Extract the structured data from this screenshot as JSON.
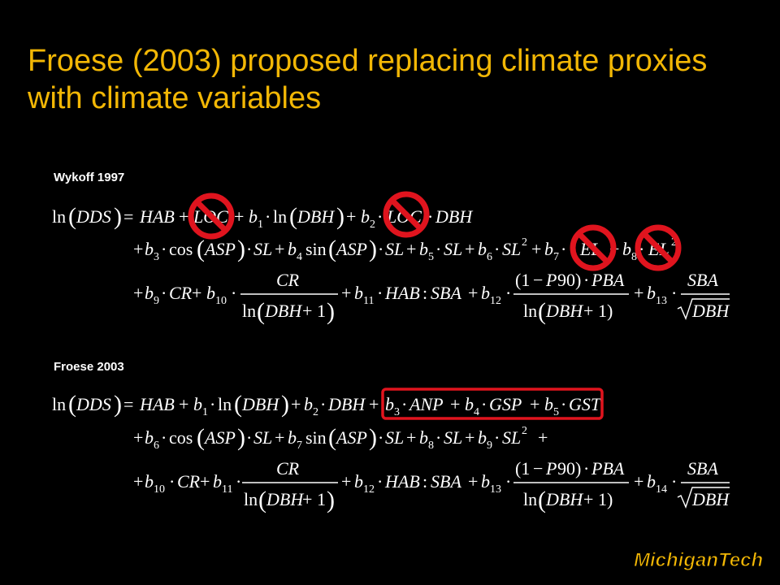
{
  "slide": {
    "title": "Froese (2003) proposed replacing climate proxies with climate variables"
  },
  "wykoff": {
    "label": "Wykoff 1997",
    "row1": "ln(DDS) = HAB + LOC + b1 · ln(DBH) + b2 · LOC · DBH",
    "row2": "+ b3 · cos(ASP) · SL + b4 sin(ASP) · SL + b5 · SL + b6 · SL² + b7 · EL + b8 · EL²",
    "row3": "+ b9 · CR + b10 · CR / ln(DBH + 1) + b11 · HAB : SBA + b12 · (1 − P90) · PBA / ln(DBH + 1) + b13 · SBA / √DBH",
    "crossed_out_terms": [
      "LOC",
      "LOC",
      "EL",
      "EL²"
    ]
  },
  "froese": {
    "label": "Froese 2003",
    "row1": "ln(DDS) = HAB + b1 · ln(DBH) + b2 · DBH + b3 · ANP + b4 · GSP + b5 · GST",
    "row2": "+ b6 · cos(ASP) · SL + b7 sin(ASP) · SL + b8 · SL + b9 · SL² +",
    "row3": "+ b10 · CR + b11 · CR / ln(DBH + 1) + b12 · HAB : SBA + b13 · (1 − P90) · PBA / ln(DBH + 1) + b14 · SBA / √DBH",
    "highlighted_terms": "b3 · ANP + b4 · GSP + b5 · GST"
  },
  "logo": {
    "text": "MichiganTech"
  },
  "colors": {
    "background": "#000000",
    "title": "#f2b705",
    "prohibition": "#e0141e",
    "highlight_box": "#e0141e",
    "logo_fill": "#f2b705"
  }
}
